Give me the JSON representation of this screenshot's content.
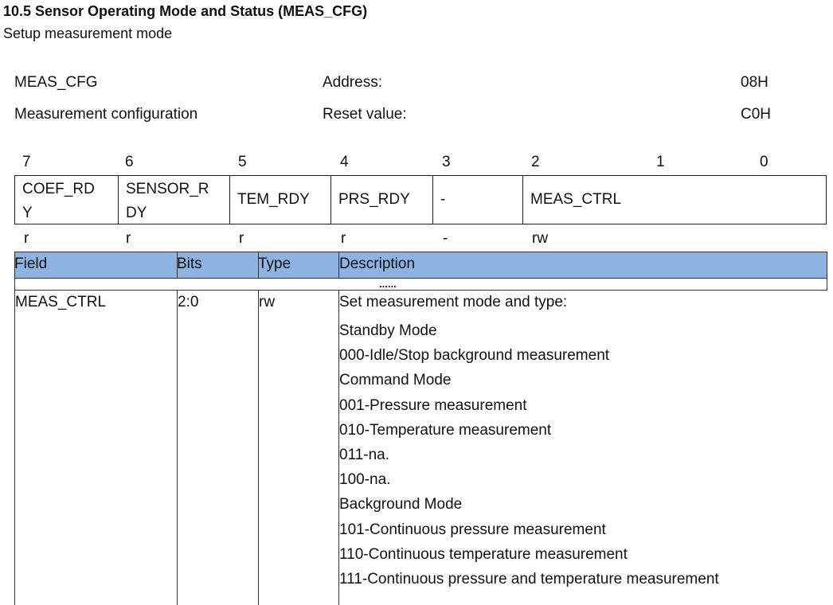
{
  "title": "10.5 Sensor Operating Mode and Status (MEAS_CFG)",
  "subtitle": "Setup measurement mode",
  "register": {
    "name": "MEAS_CFG",
    "desc": "Measurement configuration",
    "address_label": "Address:",
    "address": "08H",
    "reset_label": "Reset value:",
    "reset": "C0H"
  },
  "bits": [
    "7",
    "6",
    "5",
    "4",
    "3",
    "2",
    "1",
    "0"
  ],
  "fields": [
    {
      "l1": "COEF_RD",
      "l2": "Y"
    },
    {
      "l1": "SENSOR_R",
      "l2": "DY"
    },
    {
      "l1": "TEM_RDY",
      "l2": ""
    },
    {
      "l1": "PRS_RDY",
      "l2": ""
    },
    {
      "l1": "-",
      "l2": ""
    },
    {
      "l1": "MEAS_CTRL",
      "l2": ""
    }
  ],
  "access": [
    "r",
    "r",
    "r",
    "r",
    "-",
    "rw"
  ],
  "table": {
    "headers": [
      "Field",
      "Bits",
      "Type",
      "Description"
    ],
    "ellipsis": "......",
    "header_color": "#8db3e2",
    "row": {
      "field": "MEAS_CTRL",
      "bits": "2:0",
      "type": "rw",
      "description": [
        "Set measurement mode and type:",
        "Standby Mode",
        "000-Idle/Stop background measurement",
        "Command Mode",
        "001-Pressure measurement",
        "010-Temperature measurement",
        "011-na.",
        "100-na.",
        "Background Mode",
        "101-Continuous pressure measurement",
        "110-Continuous temperature measurement",
        "111-Continuous pressure and temperature measurement"
      ]
    }
  }
}
